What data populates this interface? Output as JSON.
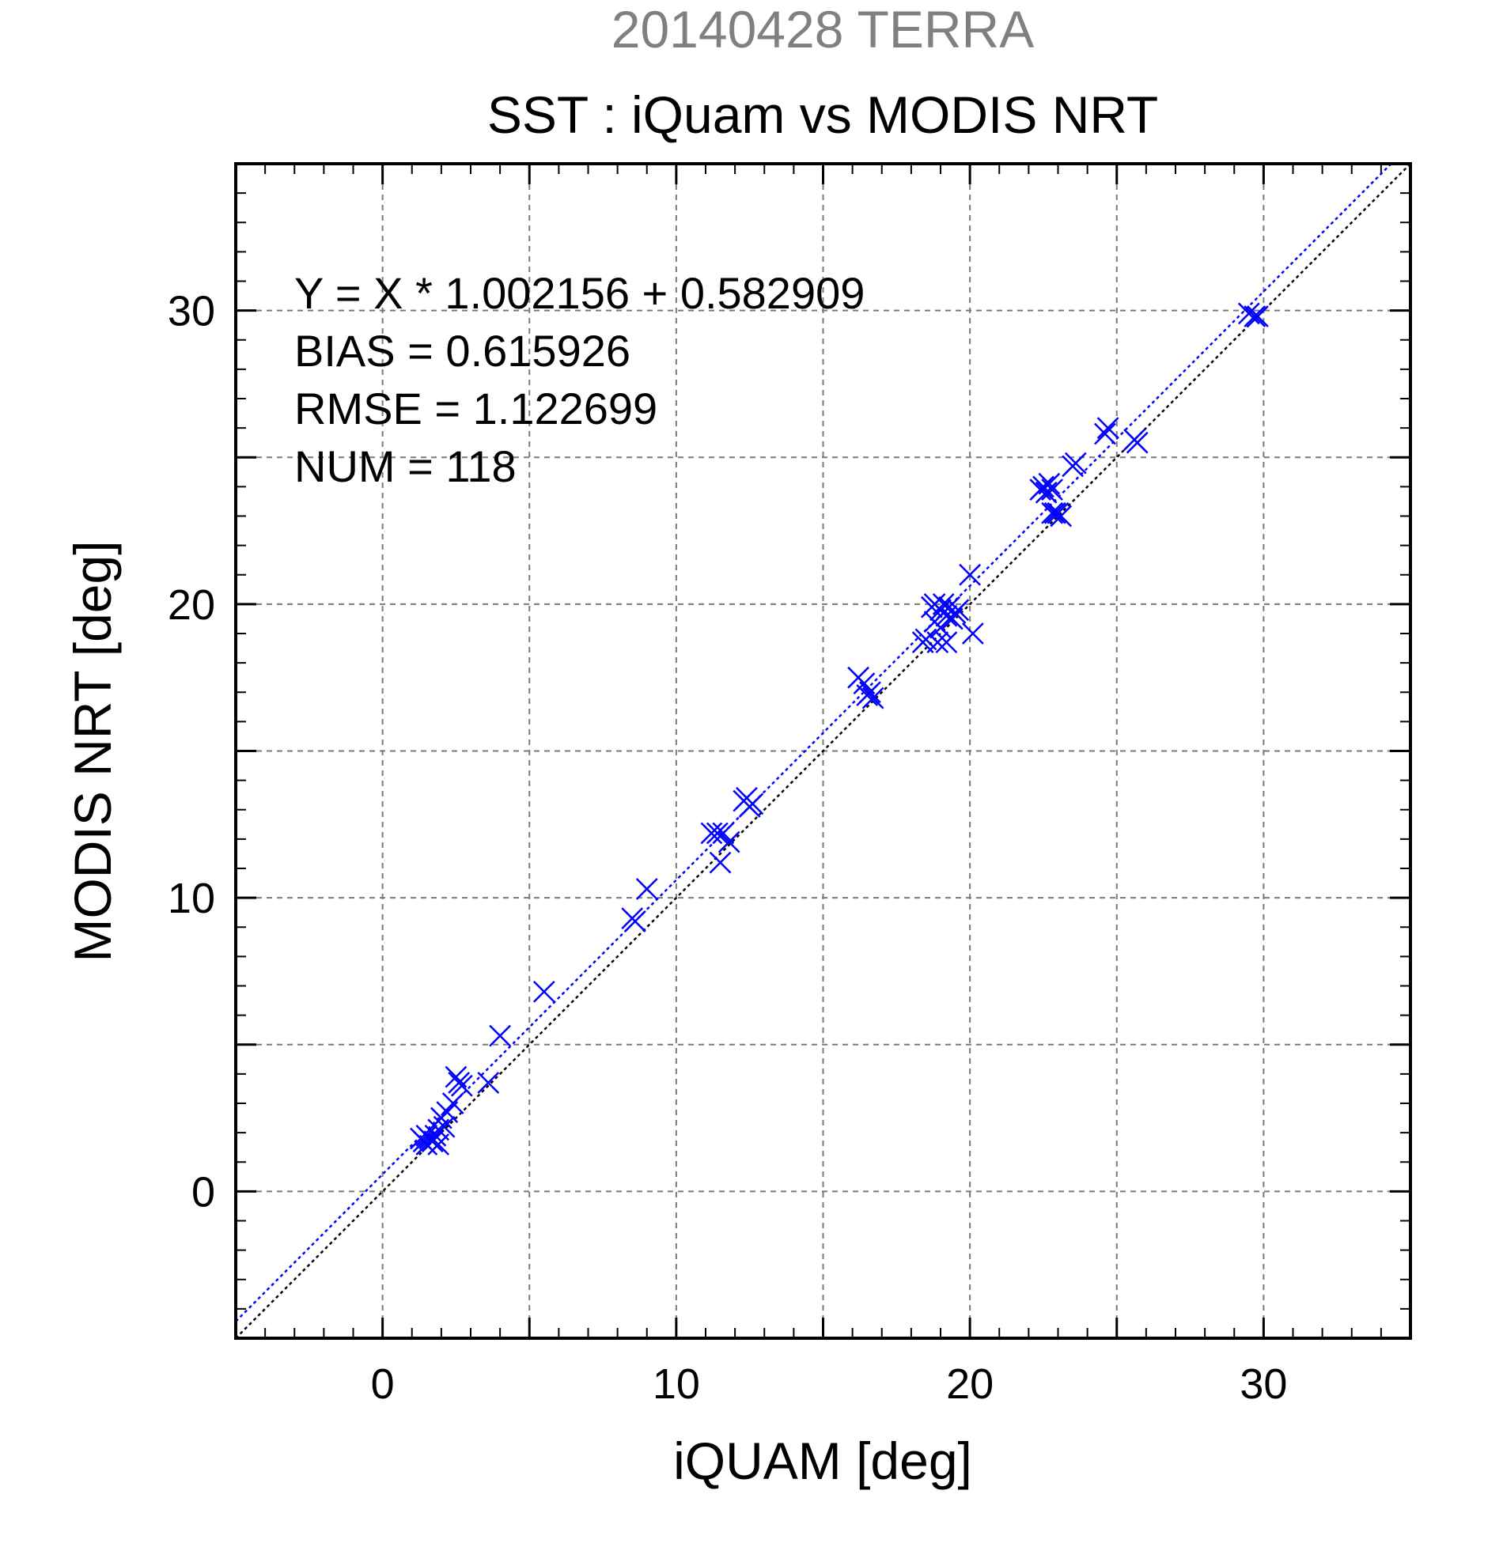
{
  "chart_data": {
    "type": "scatter",
    "supertitle": "20140428 TERRA",
    "title": "SST : iQuam vs MODIS NRT",
    "xlabel": "iQUAM [deg]",
    "ylabel": "MODIS NRT [deg]",
    "xlim": [
      -5,
      35
    ],
    "ylim": [
      -5,
      35
    ],
    "xticks": [
      0,
      10,
      20,
      30
    ],
    "yticks": [
      0,
      10,
      20,
      30
    ],
    "grid": true,
    "stats": [
      "Y = X * 1.002156 + 0.582909",
      "BIAS = 0.615926",
      "RMSE = 1.122699",
      "NUM = 118"
    ],
    "regression": {
      "slope": 1.002156,
      "intercept": 0.582909
    },
    "series": [
      {
        "marker": "x",
        "points": [
          [
            1.3,
            1.8
          ],
          [
            1.4,
            1.7
          ],
          [
            1.5,
            1.9
          ],
          [
            1.5,
            1.6
          ],
          [
            1.6,
            1.8
          ],
          [
            1.7,
            1.7
          ],
          [
            1.8,
            1.9
          ],
          [
            1.9,
            2.1
          ],
          [
            1.9,
            1.6
          ],
          [
            2.0,
            2.5
          ],
          [
            2.1,
            2.2
          ],
          [
            2.2,
            2.7
          ],
          [
            2.4,
            3.0
          ],
          [
            2.5,
            3.9
          ],
          [
            2.6,
            3.7
          ],
          [
            2.7,
            3.6
          ],
          [
            3.6,
            3.7
          ],
          [
            4.0,
            5.3
          ],
          [
            5.5,
            6.8
          ],
          [
            8.5,
            9.3
          ],
          [
            8.6,
            9.2
          ],
          [
            9.0,
            10.3
          ],
          [
            11.2,
            12.2
          ],
          [
            11.4,
            12.2
          ],
          [
            11.5,
            11.2
          ],
          [
            11.6,
            12.2
          ],
          [
            11.8,
            11.9
          ],
          [
            12.3,
            13.3
          ],
          [
            12.4,
            13.4
          ],
          [
            12.5,
            13.1
          ],
          [
            12.6,
            13.2
          ],
          [
            16.2,
            17.5
          ],
          [
            16.4,
            17.3
          ],
          [
            16.5,
            16.9
          ],
          [
            16.6,
            17.0
          ],
          [
            16.7,
            16.8
          ],
          [
            18.4,
            18.7
          ],
          [
            18.5,
            18.8
          ],
          [
            18.7,
            19.9
          ],
          [
            18.8,
            20.0
          ],
          [
            18.8,
            19.4
          ],
          [
            18.9,
            18.7
          ],
          [
            19.0,
            19.8
          ],
          [
            19.0,
            19.2
          ],
          [
            19.1,
            20.0
          ],
          [
            19.2,
            18.7
          ],
          [
            19.2,
            19.6
          ],
          [
            19.3,
            19.9
          ],
          [
            19.4,
            19.5
          ],
          [
            19.5,
            19.7
          ],
          [
            19.6,
            19.8
          ],
          [
            20.0,
            21.0
          ],
          [
            20.1,
            19.0
          ],
          [
            22.4,
            23.9
          ],
          [
            22.5,
            24.0
          ],
          [
            22.6,
            23.8
          ],
          [
            22.7,
            24.1
          ],
          [
            22.8,
            23.9
          ],
          [
            22.8,
            23.1
          ],
          [
            22.9,
            23.1
          ],
          [
            23.0,
            23.1
          ],
          [
            23.1,
            23.0
          ],
          [
            23.5,
            24.7
          ],
          [
            23.6,
            24.8
          ],
          [
            24.6,
            25.8
          ],
          [
            24.7,
            26.0
          ],
          [
            25.6,
            25.6
          ],
          [
            25.7,
            25.5
          ],
          [
            29.5,
            29.9
          ],
          [
            29.7,
            29.8
          ],
          [
            29.8,
            29.8
          ]
        ]
      }
    ]
  }
}
